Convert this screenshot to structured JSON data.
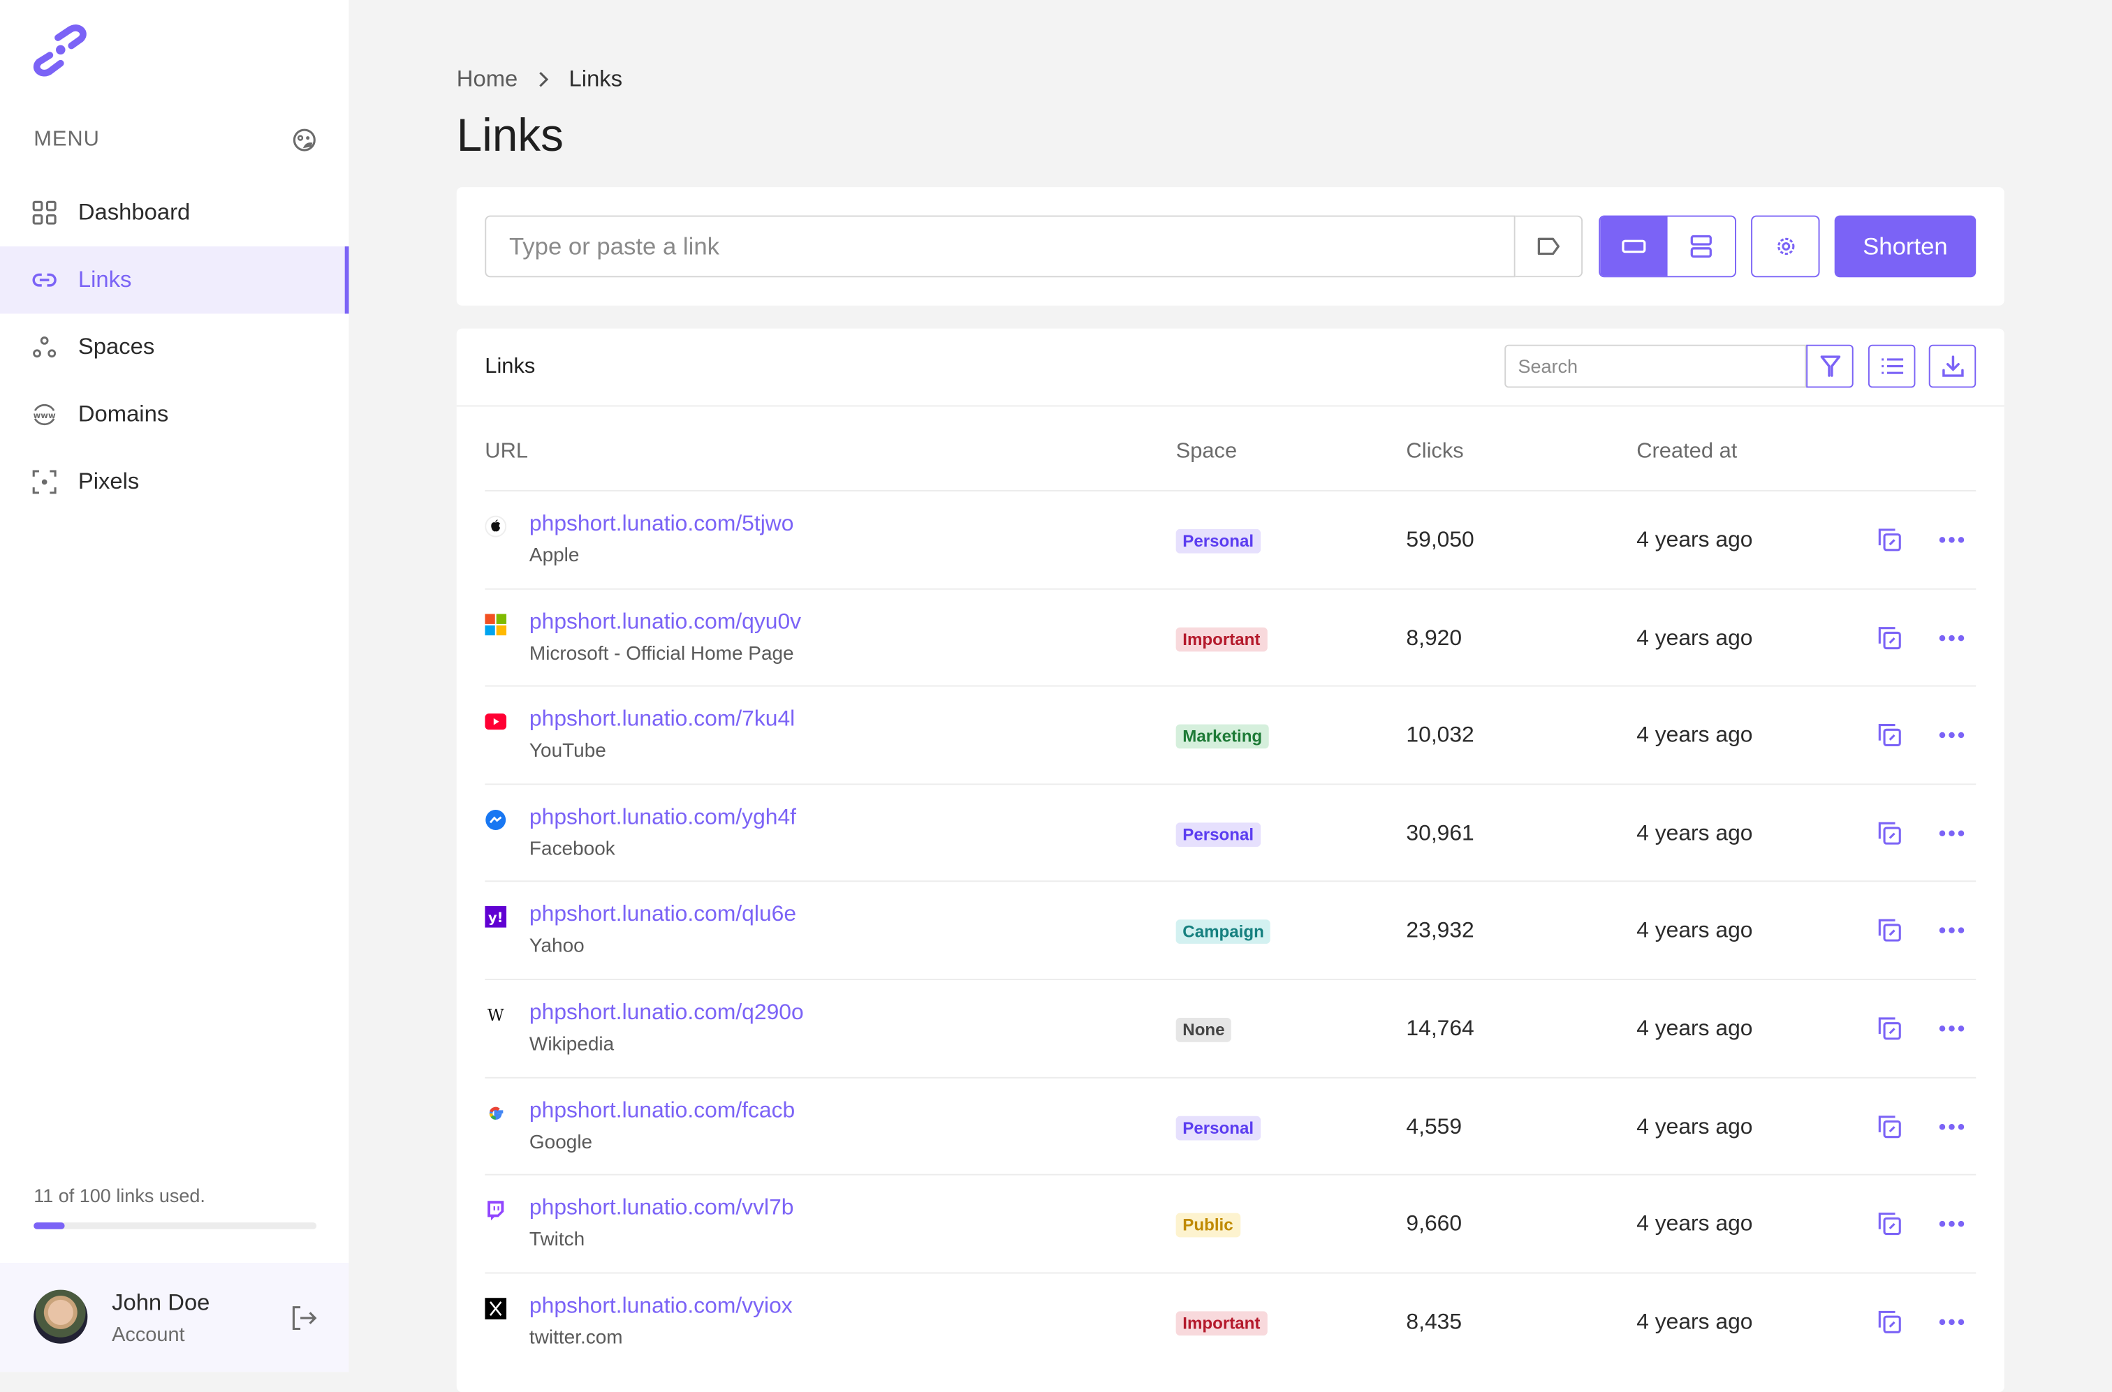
{
  "sidebar": {
    "menu_label": "MENU",
    "items": [
      {
        "label": "Dashboard",
        "icon": "grid-icon",
        "active": false
      },
      {
        "label": "Links",
        "icon": "link-icon",
        "active": true
      },
      {
        "label": "Spaces",
        "icon": "spaces-icon",
        "active": false
      },
      {
        "label": "Domains",
        "icon": "www-globe-icon",
        "active": false
      },
      {
        "label": "Pixels",
        "icon": "pixel-target-icon",
        "active": false
      }
    ],
    "usage_text": "11 of 100 links used.",
    "usage_fraction": 0.11,
    "account": {
      "name": "John Doe",
      "subtitle": "Account"
    }
  },
  "breadcrumb": {
    "home": "Home",
    "current": "Links"
  },
  "page_title": "Links",
  "shorten": {
    "placeholder": "Type or paste a link",
    "button": "Shorten"
  },
  "links": {
    "title": "Links",
    "search_placeholder": "Search",
    "columns": {
      "url": "URL",
      "space": "Space",
      "clicks": "Clicks",
      "created": "Created at"
    },
    "rows": [
      {
        "url": "phpshort.lunatio.com/5tjwo",
        "title": "Apple",
        "space": "Personal",
        "clicks": "59,050",
        "created": "4 years ago",
        "icon": "apple"
      },
      {
        "url": "phpshort.lunatio.com/qyu0v",
        "title": "Microsoft - Official Home Page",
        "space": "Important",
        "clicks": "8,920",
        "created": "4 years ago",
        "icon": "microsoft"
      },
      {
        "url": "phpshort.lunatio.com/7ku4l",
        "title": "YouTube",
        "space": "Marketing",
        "clicks": "10,032",
        "created": "4 years ago",
        "icon": "youtube"
      },
      {
        "url": "phpshort.lunatio.com/ygh4f",
        "title": "Facebook",
        "space": "Personal",
        "clicks": "30,961",
        "created": "4 years ago",
        "icon": "messenger"
      },
      {
        "url": "phpshort.lunatio.com/qlu6e",
        "title": "Yahoo",
        "space": "Campaign",
        "clicks": "23,932",
        "created": "4 years ago",
        "icon": "yahoo"
      },
      {
        "url": "phpshort.lunatio.com/q290o",
        "title": "Wikipedia",
        "space": "None",
        "clicks": "14,764",
        "created": "4 years ago",
        "icon": "wikipedia"
      },
      {
        "url": "phpshort.lunatio.com/fcacb",
        "title": "Google",
        "space": "Personal",
        "clicks": "4,559",
        "created": "4 years ago",
        "icon": "google"
      },
      {
        "url": "phpshort.lunatio.com/vvl7b",
        "title": "Twitch",
        "space": "Public",
        "clicks": "9,660",
        "created": "4 years ago",
        "icon": "twitch"
      },
      {
        "url": "phpshort.lunatio.com/vyiox",
        "title": "twitter.com",
        "space": "Important",
        "clicks": "8,435",
        "created": "4 years ago",
        "icon": "x"
      }
    ]
  },
  "badge_colors": {
    "Personal": {
      "bg": "#e6e0fd",
      "fg": "#5b3df0"
    },
    "Important": {
      "bg": "#f8d9dc",
      "fg": "#b4192b"
    },
    "Marketing": {
      "bg": "#d5efdc",
      "fg": "#1d7a36"
    },
    "Campaign": {
      "bg": "#d3f1f1",
      "fg": "#16807f"
    },
    "None": {
      "bg": "#e6e6e6",
      "fg": "#444444"
    },
    "Public": {
      "bg": "#fdf3cf",
      "fg": "#c08a00"
    }
  },
  "colors": {
    "accent": "#7b63f6"
  }
}
